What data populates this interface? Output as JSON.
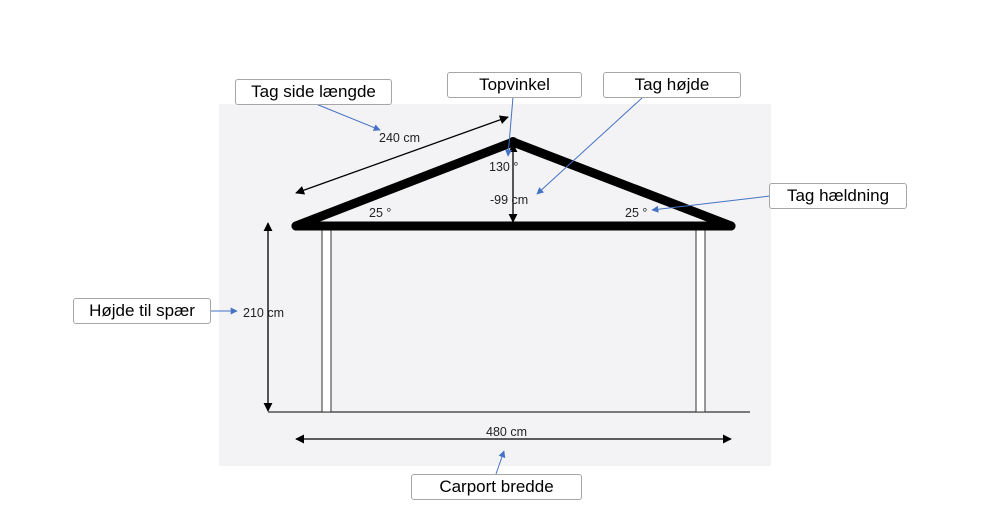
{
  "callouts": {
    "roof_side_length": "Tag side længde",
    "top_angle": "Topvinkel",
    "roof_height": "Tag højde",
    "roof_pitch": "Tag hældning",
    "height_to_rafter": "Højde til spær",
    "carport_width": "Carport bredde"
  },
  "measurements": {
    "roof_side_length": "240 cm",
    "top_angle": "130 °",
    "roof_height": "-99 cm",
    "pitch_left": "25 °",
    "pitch_right": "25 °",
    "height_to_rafter": "210 cm",
    "carport_width": "480 cm"
  },
  "colors": {
    "panel": "#f3f3f5",
    "structure": "#000000",
    "pointer": "#4472c4",
    "callout_border": "#a6a6a6"
  }
}
